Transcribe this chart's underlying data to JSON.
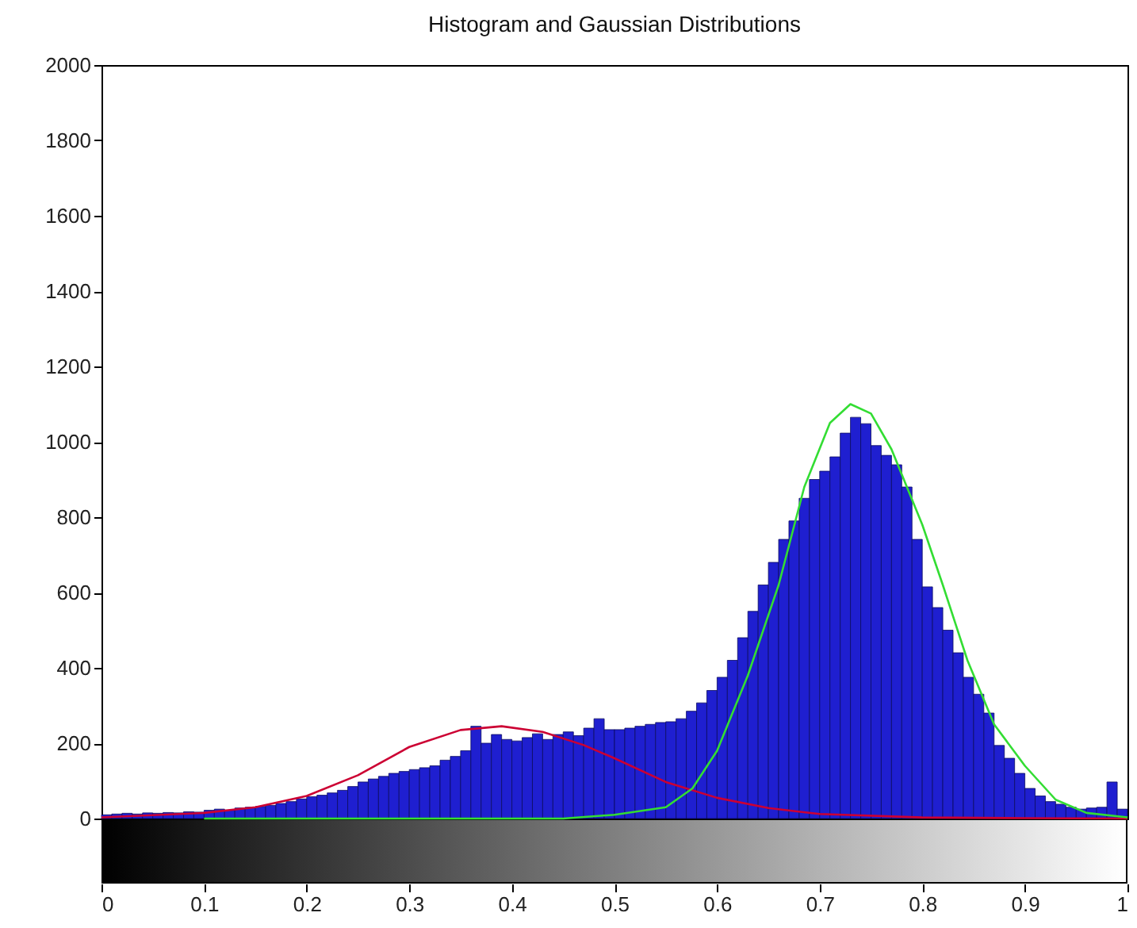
{
  "chart_data": {
    "type": "histogram",
    "title": "Histogram and Gaussian Distributions",
    "color": "#1f1fd0",
    "bins": [
      0,
      0.01,
      0.02,
      0.03,
      0.04,
      0.05,
      0.06,
      0.07,
      0.08,
      0.09,
      0.1,
      0.11,
      0.12,
      0.13,
      0.14,
      0.15,
      0.16,
      0.17,
      0.18,
      0.19,
      0.2,
      0.21,
      0.22,
      0.23,
      0.24,
      0.25,
      0.26,
      0.27,
      0.28,
      0.29,
      0.3,
      0.31,
      0.32,
      0.33,
      0.34,
      0.35,
      0.36,
      0.37,
      0.38,
      0.39,
      0.4,
      0.41,
      0.42,
      0.43,
      0.44,
      0.45,
      0.46,
      0.47,
      0.48,
      0.49,
      0.5,
      0.51,
      0.52,
      0.53,
      0.54,
      0.55,
      0.56,
      0.57,
      0.58,
      0.59,
      0.6,
      0.61,
      0.62,
      0.63,
      0.64,
      0.65,
      0.66,
      0.67,
      0.68,
      0.69,
      0.7,
      0.71,
      0.72,
      0.73,
      0.74,
      0.75,
      0.76,
      0.77,
      0.78,
      0.79,
      0.8,
      0.81,
      0.82,
      0.83,
      0.84,
      0.85,
      0.86,
      0.87,
      0.88,
      0.89,
      0.9,
      0.91,
      0.92,
      0.93,
      0.94,
      0.95,
      0.96,
      0.97,
      0.98,
      0.99,
      1
    ],
    "values": [
      10,
      12,
      14,
      12,
      15,
      14,
      16,
      15,
      18,
      17,
      22,
      25,
      22,
      28,
      30,
      32,
      35,
      40,
      45,
      52,
      58,
      62,
      68,
      75,
      85,
      97,
      105,
      112,
      120,
      125,
      130,
      135,
      140,
      155,
      165,
      180,
      245,
      200,
      223,
      210,
      206,
      215,
      225,
      210,
      223,
      230,
      220,
      240,
      265,
      236,
      236,
      240,
      245,
      250,
      255,
      257,
      265,
      285,
      307,
      340,
      375,
      420,
      480,
      550,
      620,
      680,
      741,
      790,
      850,
      900,
      922,
      960,
      1023,
      1065,
      1048,
      990,
      964,
      939,
      880,
      741,
      615,
      560,
      500,
      440,
      375,
      330,
      280,
      194,
      160,
      120,
      80,
      60,
      45,
      38,
      30,
      25,
      28,
      30,
      97,
      25
    ],
    "series": [
      {
        "type": "line",
        "color": "#cc0033",
        "x": [
          0,
          0.1,
          0.15,
          0.2,
          0.25,
          0.3,
          0.35,
          0.39,
          0.43,
          0.47,
          0.5,
          0.55,
          0.6,
          0.65,
          0.7,
          0.8,
          0.9,
          1
        ],
        "values": [
          3,
          15,
          30,
          60,
          115,
          190,
          235,
          245,
          230,
          195,
          160,
          97,
          55,
          28,
          12,
          3,
          1,
          0
        ]
      },
      {
        "type": "line",
        "color": "#33dd33",
        "x": [
          0.1,
          0.45,
          0.5,
          0.55,
          0.576,
          0.6,
          0.63,
          0.66,
          0.685,
          0.71,
          0.73,
          0.75,
          0.77,
          0.8,
          0.82,
          0.844,
          0.87,
          0.9,
          0.93,
          0.96,
          1
        ],
        "values": [
          0,
          0,
          10,
          30,
          80,
          180,
          380,
          620,
          880,
          1050,
          1100,
          1075,
          980,
          780,
          620,
          420,
          250,
          140,
          50,
          15,
          3
        ]
      }
    ],
    "xlim": [
      0,
      1
    ],
    "xticks": [
      0,
      0.1,
      0.2,
      0.3,
      0.4,
      0.5,
      0.6,
      0.7,
      0.8,
      0.9,
      1
    ],
    "ylim": [
      0,
      2000
    ],
    "yticks": [
      0,
      200,
      400,
      600,
      800,
      1000,
      1200,
      1400,
      1600,
      1800,
      2000
    ]
  }
}
